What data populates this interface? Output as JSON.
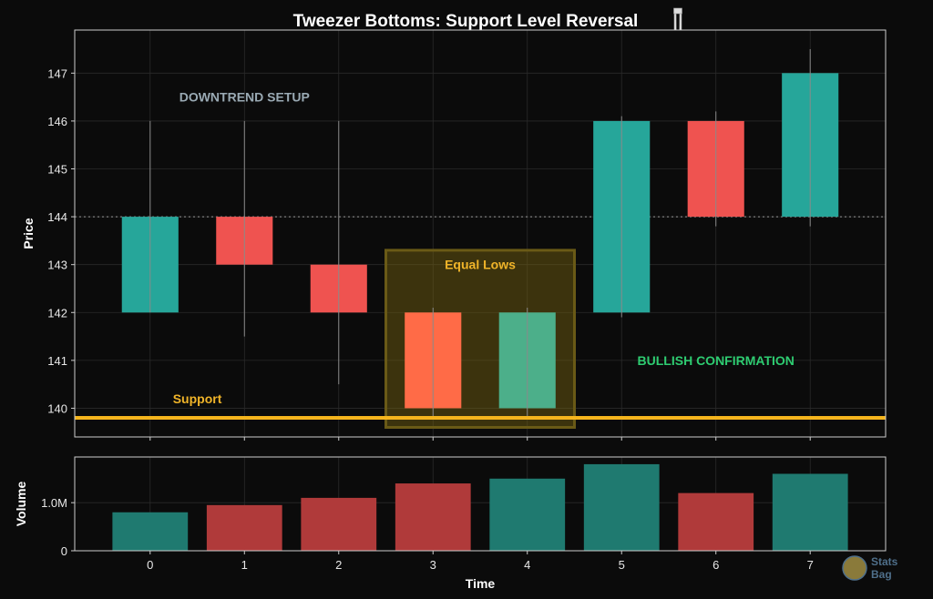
{
  "chart_data": [
    {
      "type": "candlestick",
      "title": "Tweezer Bottoms: Support Level Reversal",
      "ylabel": "Price",
      "x": [
        0,
        1,
        2,
        3,
        4,
        5,
        6,
        7
      ],
      "ylim": [
        139.4,
        147.9
      ],
      "yticks": [
        140,
        141,
        142,
        143,
        144,
        145,
        146,
        147
      ],
      "grid": true,
      "candles": [
        {
          "x": 0,
          "open": 142,
          "close": 144,
          "high": 146,
          "low": 142
        },
        {
          "x": 1,
          "open": 144,
          "close": 143,
          "high": 146,
          "low": 141.5
        },
        {
          "x": 2,
          "open": 143,
          "close": 142,
          "high": 146,
          "low": 140.5
        },
        {
          "x": 3,
          "open": 142,
          "close": 140,
          "high": 142.1,
          "low": 139.8
        },
        {
          "x": 4,
          "open": 140,
          "close": 142,
          "high": 142.1,
          "low": 139.8
        },
        {
          "x": 5,
          "open": 142,
          "close": 146,
          "high": 146.1,
          "low": 141.9
        },
        {
          "x": 6,
          "open": 146,
          "close": 144,
          "high": 146.2,
          "low": 143.8
        },
        {
          "x": 7,
          "open": 144,
          "close": 147,
          "high": 147.5,
          "low": 143.8
        }
      ],
      "candle_colors": [
        "#26a69a",
        "#ef5350",
        "#ef5350",
        "#ff6b47",
        "#4caf8a",
        "#26a69a",
        "#ef5350",
        "#26a69a"
      ],
      "support_level": 139.8,
      "resistance_line": 144,
      "highlight_region": {
        "x_from": 2.5,
        "x_to": 4.5,
        "y_from": 139.6,
        "y_to": 143.3
      },
      "annotations": [
        {
          "text": "DOWNTREND SETUP",
          "x": 1,
          "y": 146.5,
          "color": "#9aaab4"
        },
        {
          "text": "Equal Lows",
          "x": 3.5,
          "y": 143,
          "color": "#f0b429"
        },
        {
          "text": "BULLISH CONFIRMATION",
          "x": 6,
          "y": 141,
          "color": "#2ecc71"
        },
        {
          "text": "Support",
          "x": 0.5,
          "y": 140.2,
          "color": "#f0b429"
        }
      ]
    },
    {
      "type": "bar",
      "xlabel": "Time",
      "ylabel": "Volume",
      "categories": [
        0,
        1,
        2,
        3,
        4,
        5,
        6,
        7
      ],
      "values": [
        800000,
        950000,
        1100000,
        1400000,
        1500000,
        1800000,
        1200000,
        1600000
      ],
      "colors": [
        "#1f7a70",
        "#b03a3a",
        "#b03a3a",
        "#b03a3a",
        "#1f7a70",
        "#1f7a70",
        "#b03a3a",
        "#1f7a70"
      ],
      "ylim": [
        0,
        1950000
      ],
      "yticks": [
        0,
        1000000
      ],
      "ytick_labels": [
        "0",
        "1.0M"
      ]
    }
  ],
  "watermark": {
    "line1": "Stats",
    "line2": "Bag"
  }
}
